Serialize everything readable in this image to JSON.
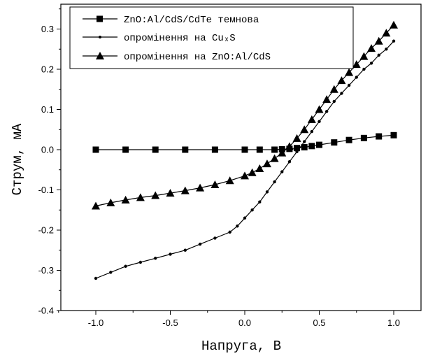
{
  "chart_data": {
    "type": "line",
    "title": "",
    "xlabel": "Напруга, В",
    "ylabel": "Струм, мА",
    "xlim": [
      -1.25,
      1.25
    ],
    "ylim": [
      -0.4,
      0.34
    ],
    "xticks": [
      -1.0,
      -0.5,
      0.0,
      0.5,
      1.0
    ],
    "xtick_labels": [
      "-1.0",
      "-0.5",
      "0.0",
      "0.5",
      "1.0"
    ],
    "yticks": [
      -0.4,
      -0.3,
      -0.2,
      -0.1,
      0.0,
      0.1,
      0.2,
      0.3
    ],
    "ytick_labels": [
      "-0.4",
      "-0.3",
      "-0.2",
      "-0.1",
      "0.0",
      "0.1",
      "0.2",
      "0.3"
    ],
    "grid": false,
    "legend_position": "top",
    "series": [
      {
        "name": "ZnO:Al/CdS/CdTe темнова",
        "marker": "square",
        "x": [
          -1.0,
          -0.8,
          -0.6,
          -0.4,
          -0.2,
          0.0,
          0.1,
          0.2,
          0.25,
          0.3,
          0.35,
          0.4,
          0.45,
          0.5,
          0.6,
          0.7,
          0.8,
          0.9,
          1.0
        ],
        "y": [
          0.0,
          0.0,
          0.0,
          0.0,
          0.0,
          0.0,
          0.0,
          0.0,
          0.001,
          0.002,
          0.004,
          0.006,
          0.009,
          0.012,
          0.018,
          0.024,
          0.029,
          0.033,
          0.036
        ]
      },
      {
        "name": "опромінення на CuₓS",
        "marker": "dot",
        "x": [
          -1.0,
          -0.9,
          -0.8,
          -0.7,
          -0.6,
          -0.5,
          -0.4,
          -0.3,
          -0.2,
          -0.1,
          -0.05,
          0.0,
          0.05,
          0.1,
          0.15,
          0.2,
          0.25,
          0.3,
          0.35,
          0.4,
          0.45,
          0.5,
          0.55,
          0.6,
          0.65,
          0.7,
          0.75,
          0.8,
          0.85,
          0.9,
          0.95,
          1.0
        ],
        "y": [
          -0.32,
          -0.305,
          -0.29,
          -0.28,
          -0.27,
          -0.26,
          -0.25,
          -0.235,
          -0.22,
          -0.205,
          -0.19,
          -0.17,
          -0.15,
          -0.13,
          -0.105,
          -0.08,
          -0.055,
          -0.03,
          -0.005,
          0.02,
          0.045,
          0.07,
          0.095,
          0.12,
          0.14,
          0.16,
          0.18,
          0.2,
          0.215,
          0.235,
          0.25,
          0.27
        ]
      },
      {
        "name": "опромінення на ZnO:Al/CdS",
        "marker": "triangle",
        "x": [
          -1.0,
          -0.9,
          -0.8,
          -0.7,
          -0.6,
          -0.5,
          -0.4,
          -0.3,
          -0.2,
          -0.1,
          0.0,
          0.05,
          0.1,
          0.15,
          0.2,
          0.25,
          0.3,
          0.35,
          0.4,
          0.45,
          0.5,
          0.55,
          0.6,
          0.65,
          0.7,
          0.75,
          0.8,
          0.85,
          0.9,
          0.95,
          1.0
        ],
        "y": [
          -0.14,
          -0.132,
          -0.125,
          -0.119,
          -0.114,
          -0.108,
          -0.102,
          -0.095,
          -0.087,
          -0.077,
          -0.065,
          -0.057,
          -0.047,
          -0.035,
          -0.022,
          -0.008,
          0.008,
          0.028,
          0.05,
          0.075,
          0.1,
          0.125,
          0.15,
          0.172,
          0.192,
          0.212,
          0.232,
          0.252,
          0.27,
          0.29,
          0.31
        ]
      }
    ]
  }
}
